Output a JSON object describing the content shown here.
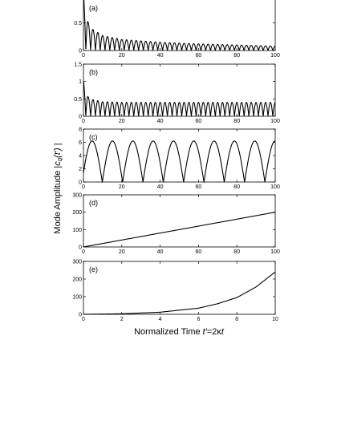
{
  "figure": {
    "ylabel_prefix": "Mode Amplitude |",
    "ylabel_var": "c",
    "ylabel_sub": "q",
    "ylabel_arg": "(t′)",
    "ylabel_suffix": " |",
    "xlabel_prefix": "Normalized Time ",
    "xlabel_var": "t′",
    "xlabel_eq": "=2κ",
    "xlabel_t": "t"
  },
  "chart_data": [
    {
      "type": "line",
      "label": "(a)",
      "xlim": [
        0,
        100
      ],
      "ylim": [
        0,
        1
      ],
      "xticks": [
        0,
        20,
        40,
        60,
        80,
        100
      ],
      "yticks": [
        0,
        0.5,
        1
      ],
      "ytick_labels": [
        "0",
        "0.5",
        ""
      ],
      "curve": "rectified_decaying_oscillation",
      "peak_envelope": [
        [
          0,
          1.0
        ],
        [
          2.5,
          0.5
        ],
        [
          5,
          0.38
        ],
        [
          10,
          0.27
        ],
        [
          20,
          0.2
        ],
        [
          40,
          0.15
        ],
        [
          60,
          0.12
        ],
        [
          80,
          0.1
        ],
        [
          100,
          0.08
        ]
      ],
      "period": 2.5
    },
    {
      "type": "line",
      "label": "(b)",
      "xlim": [
        0,
        100
      ],
      "ylim": [
        0,
        1.5
      ],
      "xticks": [
        0,
        20,
        40,
        60,
        80,
        100
      ],
      "yticks": [
        0,
        0.5,
        1,
        1.5
      ],
      "ytick_labels": [
        "0",
        "0.5",
        "1",
        "1.5"
      ],
      "curve": "rectified_oscillation",
      "peak_envelope": [
        [
          0,
          1.0
        ],
        [
          2.5,
          0.55
        ],
        [
          5,
          0.48
        ],
        [
          10,
          0.42
        ],
        [
          20,
          0.4
        ],
        [
          100,
          0.4
        ]
      ],
      "period": 2.5
    },
    {
      "type": "line",
      "label": "(c)",
      "xlim": [
        0,
        100
      ],
      "ylim": [
        0,
        8
      ],
      "xticks": [
        0,
        20,
        40,
        60,
        80,
        100
      ],
      "yticks": [
        0,
        2,
        4,
        6,
        8
      ],
      "ytick_labels": [
        "0",
        "2",
        "4",
        "6",
        "8"
      ],
      "curve": "rectified_oscillation",
      "amplitude": 6.2,
      "period": 10.6,
      "start_value": 1.4
    },
    {
      "type": "line",
      "label": "(d)",
      "xlim": [
        0,
        100
      ],
      "ylim": [
        0,
        300
      ],
      "xticks": [
        0,
        20,
        40,
        60,
        80,
        100
      ],
      "yticks": [
        0,
        100,
        200,
        300
      ],
      "ytick_labels": [
        "0",
        "100",
        "200",
        "300"
      ],
      "curve": "linear",
      "points": [
        [
          0,
          0
        ],
        [
          100,
          200
        ]
      ]
    },
    {
      "type": "line",
      "label": "(e)",
      "xlim": [
        0,
        10
      ],
      "ylim": [
        0,
        300
      ],
      "xticks": [
        0,
        2,
        4,
        6,
        8,
        10
      ],
      "yticks": [
        0,
        100,
        200,
        300
      ],
      "ytick_labels": [
        "0",
        "100",
        "200",
        "300"
      ],
      "curve": "exponential",
      "points": [
        [
          0,
          0
        ],
        [
          2,
          3
        ],
        [
          4,
          12
        ],
        [
          6,
          35
        ],
        [
          7,
          60
        ],
        [
          8,
          95
        ],
        [
          9,
          155
        ],
        [
          10,
          240
        ]
      ]
    }
  ]
}
